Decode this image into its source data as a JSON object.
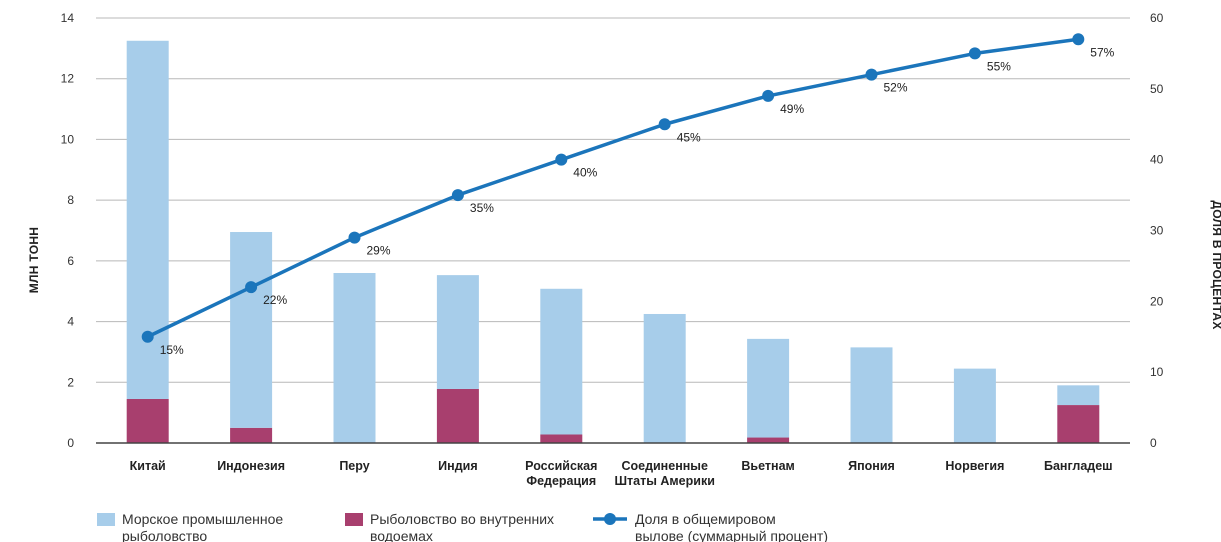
{
  "chart_data": {
    "type": "bar",
    "categories": [
      [
        "Китай"
      ],
      [
        "Индонезия"
      ],
      [
        "Перу"
      ],
      [
        "Индия"
      ],
      [
        "Российская",
        "Федерация"
      ],
      [
        "Соединенные",
        "Штаты Америки"
      ],
      [
        "Вьетнам"
      ],
      [
        "Япония"
      ],
      [
        "Норвегия"
      ],
      [
        "Бангладеш"
      ]
    ],
    "series": [
      {
        "name": "Морское промышленное рыболовство",
        "color": "#a7cdea",
        "values": [
          11.8,
          6.45,
          5.6,
          3.75,
          4.8,
          4.25,
          3.25,
          3.15,
          2.45,
          0.65
        ]
      },
      {
        "name": "Рыболовство во внутренних водоемах",
        "color": "#a83f6e",
        "values": [
          1.45,
          0.5,
          0.0,
          1.78,
          0.28,
          0.0,
          0.18,
          0.0,
          0.0,
          1.25
        ]
      }
    ],
    "cumulative": {
      "name": "Доля в общемировом вылове (суммарный процент)",
      "color": "#1b75bb",
      "values": [
        15,
        22,
        29,
        35,
        40,
        45,
        49,
        52,
        55,
        57
      ],
      "labels": [
        "15%",
        "22%",
        "29%",
        "35%",
        "40%",
        "45%",
        "49%",
        "52%",
        "55%",
        "57%"
      ]
    },
    "y_left": {
      "label": "МЛН ТОНН",
      "ylim": [
        0,
        14
      ],
      "ticks": [
        "0",
        "2",
        "4",
        "6",
        "8",
        "10",
        "12",
        "14"
      ]
    },
    "y_right": {
      "label": "ДОЛЯ В ПРОЦЕНТАХ",
      "ylim": [
        0,
        60
      ],
      "ticks": [
        "0",
        "10",
        "20",
        "30",
        "40",
        "50",
        "60"
      ]
    },
    "grid": true,
    "legend": {
      "position": "bottom",
      "items": [
        {
          "lines": [
            "Морское промышленное",
            "рыболовство"
          ],
          "kind": "box",
          "color": "#a7cdea"
        },
        {
          "lines": [
            "Рыболовство во внутренних",
            "водоемах"
          ],
          "kind": "box",
          "color": "#a83f6e"
        },
        {
          "lines": [
            "Доля в общемировом",
            "вылове (суммарный процент)"
          ],
          "kind": "line",
          "color": "#1b75bb"
        }
      ]
    }
  }
}
